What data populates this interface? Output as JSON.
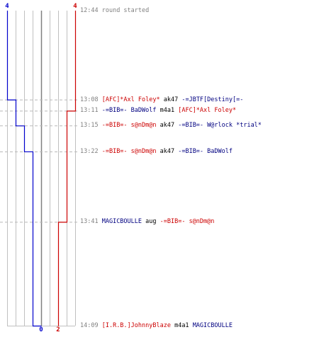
{
  "chart_data": {
    "type": "line",
    "title": "",
    "xlabel": "",
    "ylabel": "",
    "x_domain": [
      "12:44",
      "14:09"
    ],
    "y_domain": [
      0,
      4
    ],
    "grid": true,
    "series": [
      {
        "key": "blue",
        "color": "#0000cc",
        "start_label": "4",
        "end_label": "0",
        "steps": [
          {
            "time": "12:44",
            "value": 4
          },
          {
            "time": "13:08",
            "value": 3
          },
          {
            "time": "13:15",
            "value": 2
          },
          {
            "time": "13:22",
            "value": 1
          },
          {
            "time": "14:09",
            "value": 0
          }
        ]
      },
      {
        "key": "red",
        "color": "#cc0000",
        "start_label": "4",
        "end_label": "2",
        "steps": [
          {
            "time": "12:44",
            "value": 4
          },
          {
            "time": "13:11",
            "value": 3
          },
          {
            "time": "13:41",
            "value": 2
          },
          {
            "time": "14:09",
            "value": 2
          }
        ]
      }
    ]
  },
  "colors": {
    "red_team": "#cc0000",
    "blue_team": "#000080",
    "neutral": "#808080",
    "weapon": "#000000"
  },
  "events": [
    {
      "time": "12:44",
      "message": "round started"
    },
    {
      "time": "13:08",
      "killer": "[AFC]*Axl Foley*",
      "killer_team": "red",
      "weapon": "ak47",
      "victim": "-=JBTF[Destiny[=-",
      "victim_team": "blue"
    },
    {
      "time": "13:11",
      "killer": "-=BIB=- BaDWolf",
      "killer_team": "blue",
      "weapon": "m4a1",
      "victim": "[AFC]*Axl Foley*",
      "victim_team": "red"
    },
    {
      "time": "13:15",
      "killer": "-=BIB=- s@nDm@n",
      "killer_team": "red",
      "weapon": "ak47",
      "victim": "-=BIB=- W@rlock *trial*",
      "victim_team": "blue"
    },
    {
      "time": "13:22",
      "killer": "-=BIB=- s@nDm@n",
      "killer_team": "red",
      "weapon": "ak47",
      "victim": "-=BIB=- BaDWolf",
      "victim_team": "blue"
    },
    {
      "time": "13:41",
      "killer": "MAGICBOULLE",
      "killer_team": "blue",
      "weapon": "aug",
      "victim": "-=BIB=- s@nDm@n",
      "victim_team": "red"
    },
    {
      "time": "14:09",
      "killer": "[I.R.B.]JohnnyBlaze",
      "killer_team": "red",
      "weapon": "m4a1",
      "victim": "MAGICBOULLE",
      "victim_team": "blue"
    }
  ]
}
